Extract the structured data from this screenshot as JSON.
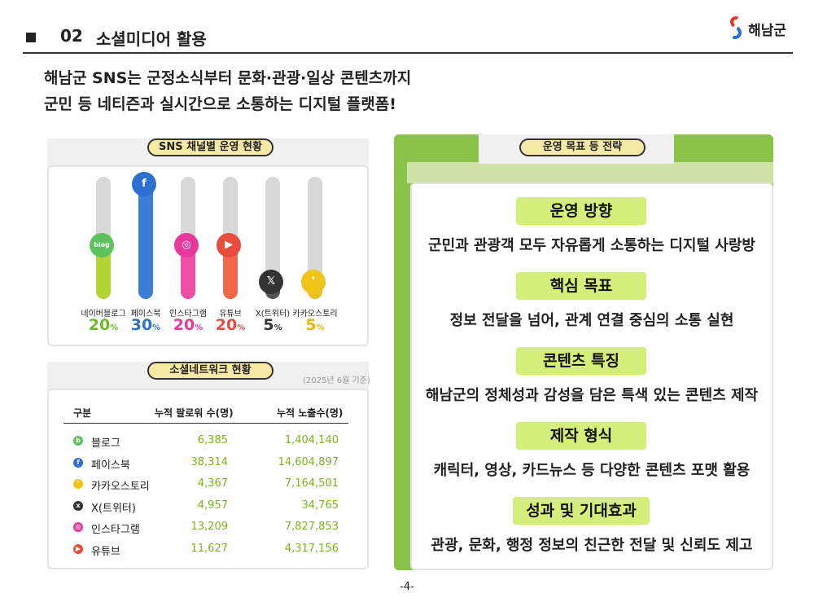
{
  "header": {
    "number": "02",
    "title": "소셜미디어 활용",
    "logo_text": "해남군"
  },
  "intro": {
    "line1": "해남군 SNS는 군정소식부터 문화·관광·일상 콘텐츠까지",
    "line2": "군민 등 네티즌과 실시간으로 소통하는 디지털 플랫폼!"
  },
  "sns_chart": {
    "title": "SNS 채널별 운영 현황",
    "channels": [
      {
        "label": "네이버블로그",
        "value": "20",
        "unit": "%",
        "icon": "blog-icon",
        "icon_text": "blog",
        "fill": 0.5,
        "color": "#b5d334",
        "icon_color": "#5cc35c",
        "pct_color": "#6fb82a"
      },
      {
        "label": "페이스북",
        "value": "30",
        "unit": "%",
        "icon": "facebook-icon",
        "icon_text": "f",
        "fill": 1.0,
        "color": "#3b7fd4",
        "icon_color": "#2e6fd0",
        "pct_color": "#2e6fd0"
      },
      {
        "label": "인스타그램",
        "value": "20",
        "unit": "%",
        "icon": "instagram-icon",
        "icon_text": "◎",
        "fill": 0.5,
        "color": "#f04fa8",
        "icon_color": "#e8389c",
        "pct_color": "#e8389c"
      },
      {
        "label": "유튜브",
        "value": "20",
        "unit": "%",
        "icon": "youtube-icon",
        "icon_text": "▶",
        "fill": 0.5,
        "color": "#f06848",
        "icon_color": "#e84c3d",
        "pct_color": "#e84c3d"
      },
      {
        "label": "X(트위터)",
        "value": "5",
        "unit": "%",
        "icon": "x-icon",
        "icon_text": "𝕏",
        "fill": 0.1,
        "color": "#555555",
        "icon_color": "#333333",
        "pct_color": "#333333"
      },
      {
        "label": "카카오스토리",
        "value": "5",
        "unit": "%",
        "icon": "kakaostory-icon",
        "icon_text": "❜",
        "fill": 0.1,
        "color": "#e8c020",
        "icon_color": "#f0c419",
        "pct_color": "#e8b800"
      }
    ]
  },
  "network_table": {
    "title": "소셜네트워크 현황",
    "as_of": "(2025년 6월 기준)",
    "headers": [
      "구분",
      "누적 팔로워 수(명)",
      "누적 노출수(명)"
    ],
    "rows": [
      {
        "name": "블로그",
        "followers": "6,385",
        "views": "1,404,140",
        "icon": "blog-icon",
        "icon_text": "b",
        "color": "#5cc35c"
      },
      {
        "name": "페이스북",
        "followers": "38,314",
        "views": "14,604,897",
        "icon": "facebook-icon",
        "icon_text": "f",
        "color": "#2e6fd0"
      },
      {
        "name": "카카오스토리",
        "followers": "4,367",
        "views": "7,164,501",
        "icon": "kakaostory-icon",
        "icon_text": "❜",
        "color": "#f0c419"
      },
      {
        "name": "X(트위터)",
        "followers": "4,957",
        "views": "34,765",
        "icon": "x-icon",
        "icon_text": "x",
        "color": "#333333"
      },
      {
        "name": "인스타그램",
        "followers": "13,209",
        "views": "7,827,853",
        "icon": "instagram-icon",
        "icon_text": "◎",
        "color": "#e8389c"
      },
      {
        "name": "유튜브",
        "followers": "11,627",
        "views": "4,317,156",
        "icon": "youtube-icon",
        "icon_text": "▶",
        "color": "#e84c3d"
      }
    ]
  },
  "strategy": {
    "title": "운영 목표 등 전략",
    "sections": [
      {
        "heading": "운영 방향",
        "text": "군민과 관광객 모두 자유롭게 소통하는 디지털 사랑방"
      },
      {
        "heading": "핵심 목표",
        "text": "정보 전달을 넘어, 관계 연결 중심의 소통 실현"
      },
      {
        "heading": "콘텐츠 특징",
        "text": "해남군의 정체성과 감성을 담은 특색 있는 콘텐츠 제작"
      },
      {
        "heading": "제작 형식",
        "text": "캐릭터, 영상, 카드뉴스 등 다양한 콘텐츠 포맷 활용"
      },
      {
        "heading": "성과 및 기대효과",
        "text": "관광, 문화, 행정 정보의 친근한 전달 및 신뢰도 제고"
      }
    ]
  },
  "page_number": "-4-"
}
